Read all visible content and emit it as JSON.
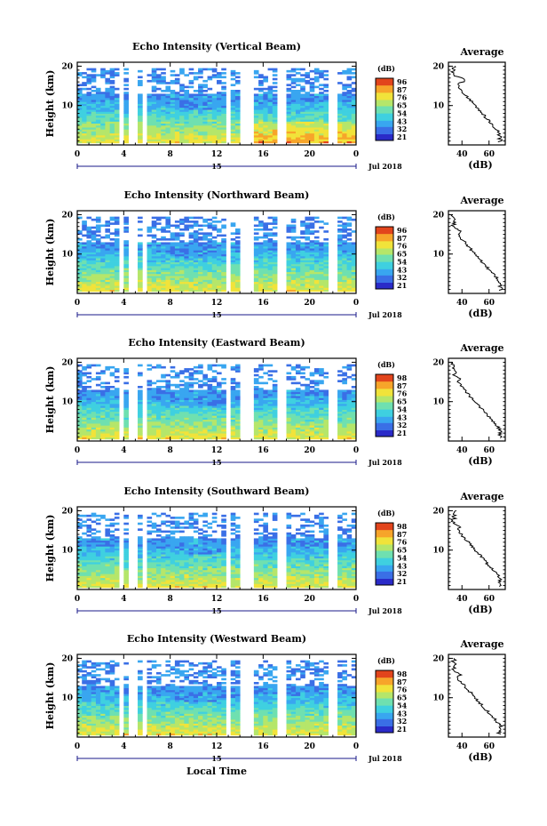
{
  "chart_data": [
    {
      "type": "heatmap",
      "title": "Echo Intensity (Vertical Beam)",
      "ylabel": "Height (km)",
      "xticks": [
        "0",
        "4",
        "8",
        "12",
        "16",
        "20",
        "0"
      ],
      "yticks": [
        "20",
        "10"
      ],
      "date_label": "Jul 2018",
      "date_day": "15",
      "colorbar": {
        "unit": "(dB)",
        "ticks": [
          "96",
          "87",
          "76",
          "65",
          "54",
          "43",
          "32",
          "21"
        ]
      },
      "profile": {
        "title": "Average",
        "xlabel": "(dB)",
        "xticks": [
          "40",
          "60"
        ],
        "yticks": [
          "20",
          "10"
        ]
      }
    },
    {
      "type": "heatmap",
      "title": "Echo Intensity (Northward Beam)",
      "ylabel": "Height (km)",
      "xticks": [
        "0",
        "4",
        "8",
        "12",
        "16",
        "20",
        "0"
      ],
      "yticks": [
        "20",
        "10"
      ],
      "date_label": "Jul 2018",
      "date_day": "15",
      "colorbar": {
        "unit": "(dB)",
        "ticks": [
          "96",
          "87",
          "76",
          "65",
          "54",
          "43",
          "32",
          "21"
        ]
      },
      "profile": {
        "title": "Average",
        "xlabel": "(dB)",
        "xticks": [
          "40",
          "60"
        ],
        "yticks": [
          "20",
          "10"
        ]
      }
    },
    {
      "type": "heatmap",
      "title": "Echo Intensity (Eastward Beam)",
      "ylabel": "Height (km)",
      "xticks": [
        "0",
        "4",
        "8",
        "12",
        "16",
        "20",
        "0"
      ],
      "yticks": [
        "20",
        "10"
      ],
      "date_label": "Jul 2018",
      "date_day": "15",
      "colorbar": {
        "unit": "(dB)",
        "ticks": [
          "98",
          "87",
          "76",
          "65",
          "54",
          "43",
          "32",
          "21"
        ]
      },
      "profile": {
        "title": "Average",
        "xlabel": "(dB)",
        "xticks": [
          "40",
          "60"
        ],
        "yticks": [
          "20",
          "10"
        ]
      }
    },
    {
      "type": "heatmap",
      "title": "Echo Intensity (Southward Beam)",
      "ylabel": "Height (km)",
      "xticks": [
        "0",
        "4",
        "8",
        "12",
        "16",
        "20",
        "0"
      ],
      "yticks": [
        "20",
        "10"
      ],
      "date_label": "Jul 2018",
      "date_day": "15",
      "colorbar": {
        "unit": "(dB)",
        "ticks": [
          "98",
          "87",
          "76",
          "65",
          "54",
          "43",
          "32",
          "21"
        ]
      },
      "profile": {
        "title": "Average",
        "xlabel": "(dB)",
        "xticks": [
          "40",
          "60"
        ],
        "yticks": [
          "20",
          "10"
        ]
      }
    },
    {
      "type": "heatmap",
      "title": "Echo Intensity (Westward Beam)",
      "ylabel": "Height (km)",
      "xticks": [
        "0",
        "4",
        "8",
        "12",
        "16",
        "20",
        "0"
      ],
      "yticks": [
        "20",
        "10"
      ],
      "date_label": "Jul 2018",
      "date_day": "15",
      "xlabel": "Local Time",
      "colorbar": {
        "unit": "(dB)",
        "ticks": [
          "98",
          "87",
          "76",
          "65",
          "54",
          "43",
          "32",
          "21"
        ]
      },
      "profile": {
        "title": "Average",
        "xlabel": "(dB)",
        "xticks": [
          "40",
          "60"
        ],
        "yticks": [
          "20",
          "10"
        ]
      }
    }
  ],
  "colors": {
    "scale": [
      "#2a2bc8",
      "#3a6fe6",
      "#39a6f0",
      "#3fd0e0",
      "#6fe0b0",
      "#b5e66a",
      "#f1e33a",
      "#f7a52a",
      "#e2451c"
    ]
  }
}
